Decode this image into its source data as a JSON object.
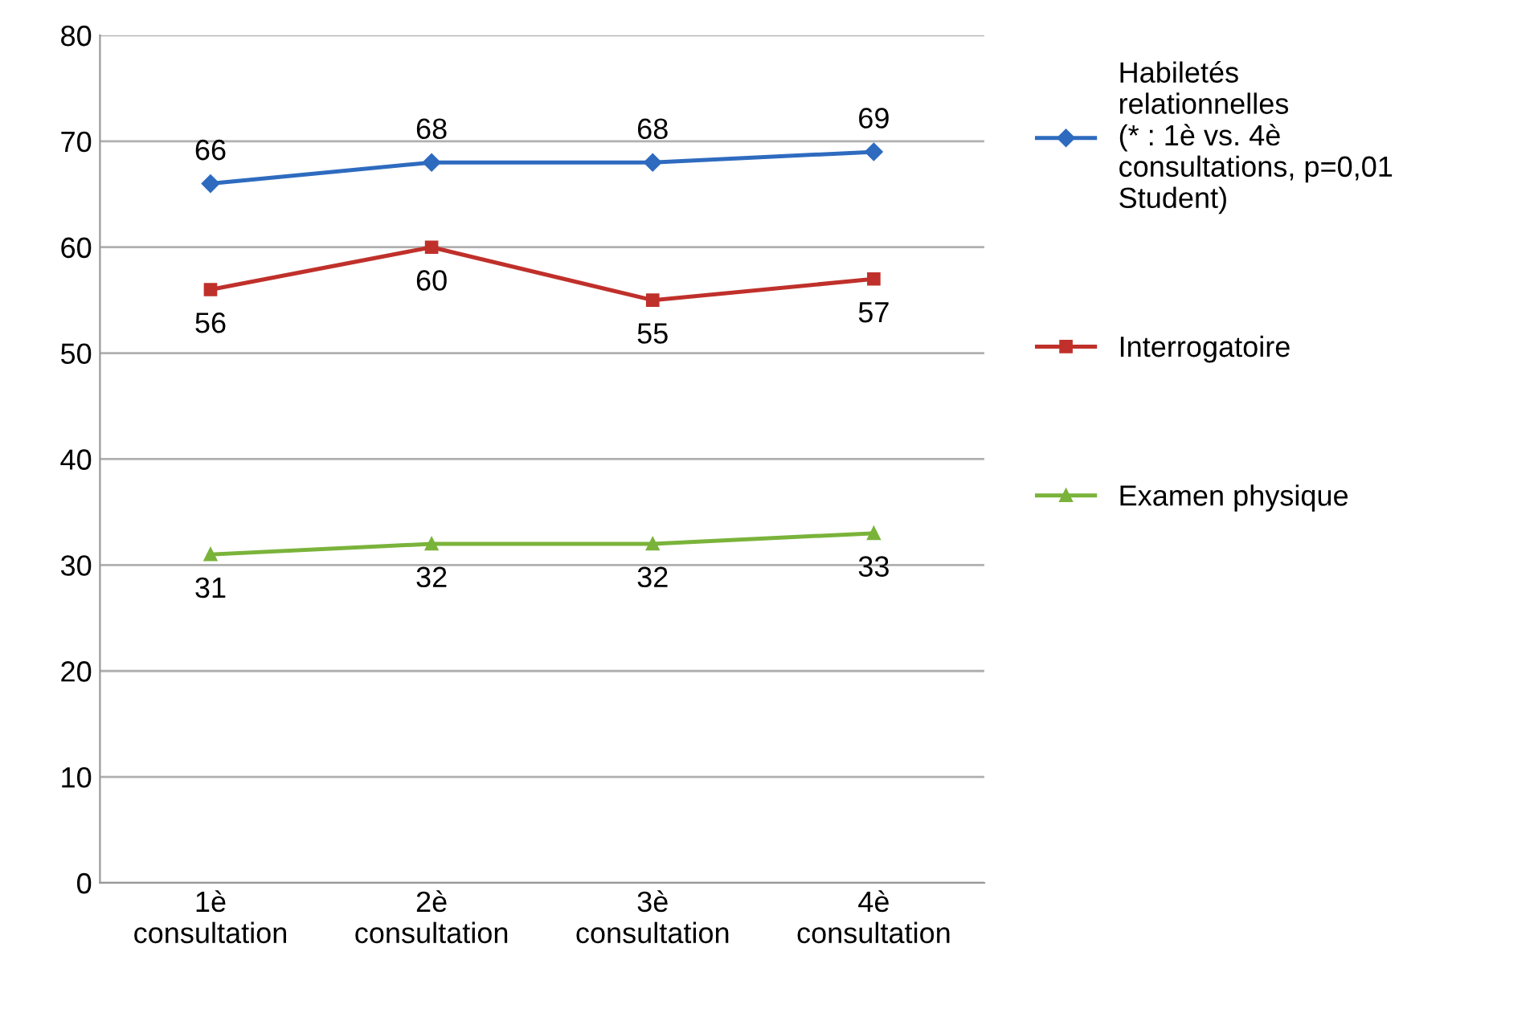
{
  "chart_data": {
    "type": "line",
    "categories": [
      "1è\nconsultation",
      "2è\nconsultation",
      "3è\nconsultation",
      "4è\nconsultation"
    ],
    "series": [
      {
        "name": "Habiletés\nrelationnelles\n(* : 1è vs. 4è\nconsultations, p=0,01\nStudent)",
        "color": "#2e6bbf",
        "values": [
          66,
          68,
          68,
          69
        ],
        "marker": "diamond"
      },
      {
        "name": "Interrogatoire",
        "color": "#c0302b",
        "values": [
          56,
          60,
          55,
          57
        ],
        "marker": "square"
      },
      {
        "name": "Examen physique",
        "color": "#7ab33a",
        "values": [
          31,
          32,
          32,
          33
        ],
        "marker": "triangle"
      }
    ],
    "ylim": [
      0,
      80
    ],
    "yticks": [
      0,
      10,
      20,
      30,
      40,
      50,
      60,
      70,
      80
    ],
    "grid": "y",
    "legend": "right",
    "data_labels": true,
    "line_style": "solid"
  }
}
